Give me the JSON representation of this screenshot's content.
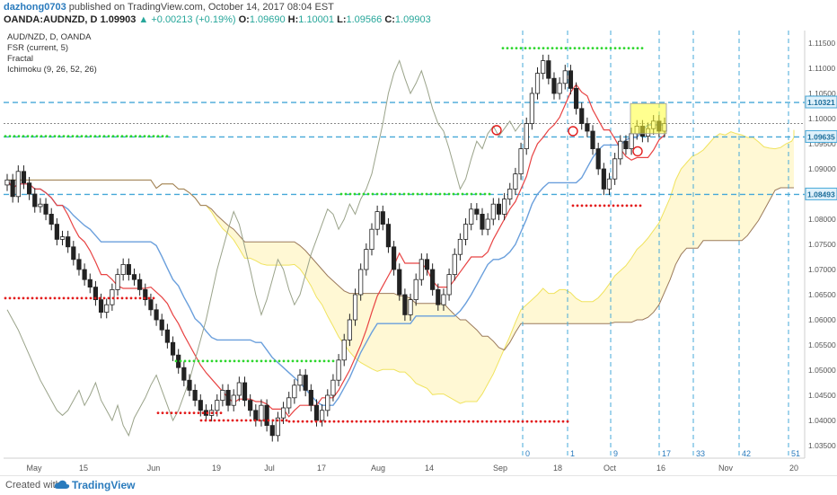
{
  "header": {
    "author": "dazhong0703",
    "published_text": "published on TradingView.com, October 14, 2017 08:04 EST",
    "symbol": "OANDA:AUDNZD, D",
    "last": "1.09903",
    "change": "+0.00213 (+0.19%)",
    "o_label": "O:",
    "o_value": "1.09690",
    "h_label": "H:",
    "h_value": "1.10001",
    "l_label": "L:",
    "l_value": "1.09566",
    "c_label": "C:",
    "c_value": "1.09903"
  },
  "legend": [
    "AUD/NZD, D, OANDA",
    "FSR (current, 5)",
    "Fractal",
    "Ichimoku (9, 26, 52, 26)"
  ],
  "footer": {
    "created_with": "Created with",
    "brand": "TradingView"
  },
  "colors": {
    "up": "#ffffff",
    "down": "#222222",
    "tenkan": "#e84343",
    "kijun": "#6a9fdc",
    "chikou": "#9aa38a",
    "span_a": "#f0e35e",
    "span_b": "#9b7a5b",
    "cloud_bull": "#fff7cc",
    "cloud_bear": "#efe5da",
    "level_line": "#46a8d8",
    "support_dots": "#e31b1b",
    "resistance_dots": "#2bd62b",
    "highlight_box": "#ffff33"
  },
  "chart_data": {
    "type": "candlestick",
    "title": "AUD/NZD, D, OANDA",
    "x_ticks": [
      "May",
      "15",
      "Jun",
      "19",
      "Jul",
      "17",
      "Aug",
      "14",
      "Sep",
      "18",
      "Oct",
      "16",
      "Nov",
      "20"
    ],
    "y_ticks": [
      "1.11500",
      "1.11000",
      "1.10500",
      "1.10000",
      "1.09500",
      "1.09000",
      "1.08500",
      "1.08000",
      "1.07500",
      "1.07000",
      "1.06500",
      "1.06000",
      "1.05500",
      "1.05000",
      "1.04500",
      "1.04000",
      "1.03500"
    ],
    "ylim": [
      1.0325,
      1.1175
    ],
    "price_labels": [
      {
        "value": 1.10321,
        "text": "1.10321"
      },
      {
        "value": 1.09635,
        "text": "1.09635"
      },
      {
        "value": 1.08493,
        "text": "1.08493"
      }
    ],
    "last_price": 1.09903,
    "closes": [
      1.0878,
      1.0845,
      1.0895,
      1.0872,
      1.085,
      1.0825,
      1.083,
      1.081,
      1.079,
      1.076,
      1.0765,
      1.0745,
      1.072,
      1.07,
      1.068,
      1.0665,
      1.064,
      1.0615,
      1.063,
      1.066,
      1.069,
      1.071,
      1.069,
      1.068,
      1.066,
      1.064,
      1.062,
      1.06,
      1.058,
      1.0555,
      1.053,
      1.0505,
      1.048,
      1.046,
      1.044,
      1.042,
      1.041,
      1.042,
      1.044,
      1.046,
      1.043,
      1.045,
      1.0475,
      1.044,
      1.042,
      1.04,
      1.043,
      1.039,
      1.037,
      1.0405,
      1.0425,
      1.0445,
      1.047,
      1.049,
      1.046,
      1.043,
      1.04,
      1.042,
      1.045,
      1.048,
      1.052,
      1.056,
      1.06,
      1.065,
      1.07,
      1.074,
      1.078,
      1.0815,
      1.079,
      1.0745,
      1.07,
      1.065,
      1.061,
      1.064,
      1.068,
      1.072,
      1.07,
      1.066,
      1.063,
      1.065,
      1.069,
      1.073,
      1.076,
      1.079,
      1.082,
      1.081,
      1.078,
      1.08,
      1.083,
      1.081,
      1.084,
      1.086,
      1.089,
      1.094,
      1.099,
      1.105,
      1.109,
      1.1115,
      1.108,
      1.105,
      1.107,
      1.1095,
      1.106,
      1.102,
      1.099,
      1.0975,
      1.094,
      1.09,
      1.086,
      1.088,
      1.092,
      1.0955,
      1.094,
      1.097,
      1.0985,
      1.0965,
      1.098,
      1.0995,
      1.0975,
      1.099
    ],
    "candle_dates_start": "2017-04-24",
    "bar_spacing_days": 1,
    "vertical_date_lines": [
      "Sep",
      "Sep 18",
      "Oct",
      "Oct 16",
      "Oct 23",
      "Nov",
      "Nov 13"
    ],
    "vertical_line_labels": [
      "0",
      "1",
      "9",
      "17",
      "33",
      "42",
      "51"
    ]
  }
}
